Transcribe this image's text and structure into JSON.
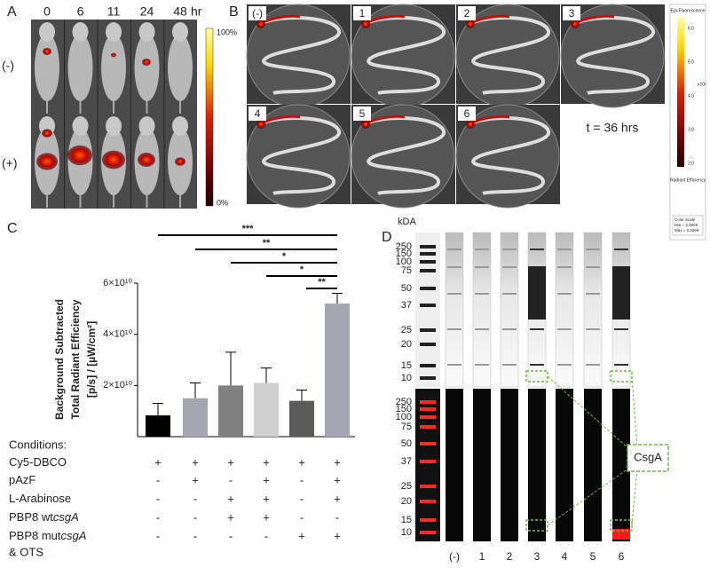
{
  "panel_a": {
    "letter": "A",
    "times": [
      "0",
      "6",
      "11",
      "24",
      "48"
    ],
    "unit": "hr",
    "rows": [
      "(-)",
      "(+)"
    ],
    "scale_max": "100%",
    "scale_min": "0%"
  },
  "panel_b": {
    "letter": "B",
    "dishes": [
      "(-)",
      "1",
      "2",
      "3",
      "4",
      "5",
      "6"
    ],
    "time": "t = 36 hrs",
    "scale_title": "Epi-Fluorescence",
    "scale_ticks": [
      "6.0",
      "5.0",
      "4.0",
      "3.0",
      "2.0"
    ],
    "scale_exp": "x10⁹",
    "scale_label": "Radiant Efficiency",
    "scale_box": [
      "Color Scale",
      "Min = 2.00e9",
      "Max = 6.50e9"
    ]
  },
  "chart_data": {
    "type": "bar",
    "letter": "C",
    "ylabel": [
      "Background Subtracted",
      "Total Radiant Efficiency",
      "[p/s] / [µW/cm²]"
    ],
    "categories": [
      null,
      null,
      null,
      null,
      null,
      null
    ],
    "values": [
      8300000000,
      15000000000,
      20000000000,
      21000000000,
      14000000000,
      52000000000
    ],
    "errors": [
      4700000000,
      6000000000,
      13000000000,
      5800000000,
      4200000000,
      4000000000
    ],
    "colors": [
      "#000000",
      "#a6a6b2",
      "#808080",
      "#d0d0d0",
      "#5a5a5a",
      "#a6a6b2"
    ],
    "ylim": [
      0,
      60000000000
    ],
    "yticks": [
      {
        "value": 20000000000,
        "label": "2×10¹⁰"
      },
      {
        "value": 40000000000,
        "label": "4×10¹⁰"
      },
      {
        "value": 60000000000,
        "label": "6×10¹⁰"
      }
    ],
    "significance": [
      "***",
      "**",
      "*",
      "*",
      "**"
    ],
    "conditions_title": "Conditions:",
    "conditions": [
      {
        "name": "Cy5-DBCO",
        "signs": [
          "+",
          "+",
          "+",
          "+",
          "+",
          "+"
        ]
      },
      {
        "name": "pAzF",
        "signs": [
          "-",
          "+",
          "-",
          "+",
          "-",
          "+"
        ]
      },
      {
        "name": "L-Arabinose",
        "signs": [
          "-",
          "-",
          "+",
          "+",
          "-",
          "+"
        ]
      },
      {
        "name": "PBP8 wt",
        "gene": "csgA",
        "signs": [
          "-",
          "-",
          "+",
          "+",
          "-",
          "-"
        ]
      },
      {
        "name": "PBP8 mut",
        "gene": "csgA",
        "extra": "& OTS",
        "signs": [
          "-",
          "-",
          "-",
          "-",
          "+",
          "+"
        ]
      }
    ]
  },
  "panel_d": {
    "letter": "D",
    "unit": "kDA",
    "ladder": [
      "250",
      "150",
      "100",
      "75",
      "50",
      "37",
      "25",
      "20",
      "15",
      "10"
    ],
    "lanes": [
      "(-)",
      "1",
      "2",
      "3",
      "4",
      "5",
      "6"
    ],
    "target": "CsgA"
  }
}
